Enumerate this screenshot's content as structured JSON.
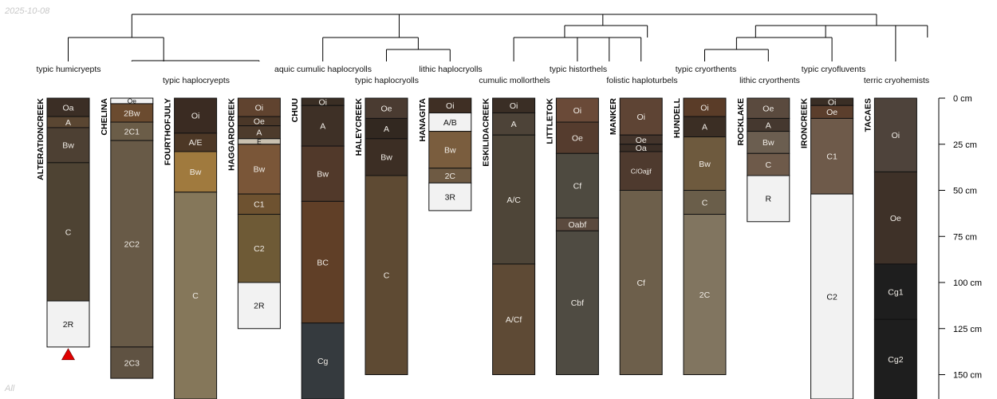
{
  "header": {
    "date": "2025-10-08"
  },
  "footer": {
    "label": "All"
  },
  "axis": {
    "unit": "cm",
    "ticks": [
      0,
      25,
      50,
      75,
      100,
      125,
      150
    ],
    "max_depth_shown": 165
  },
  "dendrogram": {
    "subgroups": [
      {
        "label": "typic humicryepts",
        "profiles": [
          "ALTERATIONCREEK"
        ]
      },
      {
        "label": "typic haplocryepts",
        "profiles": [
          "CHELINA",
          "FOURTHOFJULY",
          "HAGGARDCREEK"
        ]
      },
      {
        "label": "aquic cumulic haplocryolls",
        "profiles": [
          "CHUU"
        ]
      },
      {
        "label": "typic haplocryolls",
        "profiles": [
          "HALEYCREEK"
        ]
      },
      {
        "label": "lithic haplocryolls",
        "profiles": [
          "HANAGITA"
        ]
      },
      {
        "label": "cumulic mollorthels",
        "profiles": [
          "ESKILIDACREEK"
        ]
      },
      {
        "label": "typic historthels",
        "profiles": [
          "LITTLETOK"
        ]
      },
      {
        "label": "folistic haploturbels",
        "profiles": [
          "MANKER"
        ]
      },
      {
        "label": "typic cryorthents",
        "profiles": [
          "HUNDELL"
        ]
      },
      {
        "label": "lithic cryorthents",
        "profiles": [
          "ROCKLAKE"
        ]
      },
      {
        "label": "typic cryofluvents",
        "profiles": [
          "IRONCREEK"
        ]
      },
      {
        "label": "terric cryohemists",
        "profiles": [
          "TACAES"
        ]
      }
    ]
  },
  "profiles": [
    {
      "name": "ALTERATIONCREEK",
      "truncated": true,
      "horizons": [
        {
          "name": "Oa",
          "top": 0,
          "bottom": 10,
          "color": "#3b2e25"
        },
        {
          "name": "A",
          "top": 10,
          "bottom": 16,
          "color": "#5a4632"
        },
        {
          "name": "Bw",
          "top": 16,
          "bottom": 35,
          "color": "#4d4033"
        },
        {
          "name": "C",
          "top": 35,
          "bottom": 110,
          "color": "#4e4333"
        },
        {
          "name": "2R",
          "top": 110,
          "bottom": 135,
          "color": "#f2f2f2"
        }
      ]
    },
    {
      "name": "CHELINA",
      "horizons": [
        {
          "name": "Oe",
          "top": 0,
          "bottom": 3,
          "color": "#f2f2f2"
        },
        {
          "name": "2Bw",
          "top": 3,
          "bottom": 13,
          "color": "#6b4b2f"
        },
        {
          "name": "2C1",
          "top": 13,
          "bottom": 23,
          "color": "#6b5d48"
        },
        {
          "name": "2C2",
          "top": 23,
          "bottom": 135,
          "color": "#685a47"
        },
        {
          "name": "2C3",
          "top": 135,
          "bottom": 152,
          "color": "#5f5242"
        }
      ]
    },
    {
      "name": "FOURTHOFJULY",
      "horizons": [
        {
          "name": "Oi",
          "top": 0,
          "bottom": 19,
          "color": "#3a2b22"
        },
        {
          "name": "A/E",
          "top": 19,
          "bottom": 29,
          "color": "#4d3826"
        },
        {
          "name": "Bw",
          "top": 29,
          "bottom": 51,
          "color": "#a07a3e"
        },
        {
          "name": "C",
          "top": 51,
          "bottom": 165,
          "color": "#85775a"
        }
      ]
    },
    {
      "name": "HAGGARDCREEK",
      "horizons": [
        {
          "name": "Oi",
          "top": 0,
          "bottom": 10,
          "color": "#60432f"
        },
        {
          "name": "Oe",
          "top": 10,
          "bottom": 15,
          "color": "#4a3728"
        },
        {
          "name": "A",
          "top": 15,
          "bottom": 22,
          "color": "#4d3b2c"
        },
        {
          "name": "E",
          "top": 22,
          "bottom": 25,
          "color": "#c9c0b0"
        },
        {
          "name": "Bw",
          "top": 25,
          "bottom": 52,
          "color": "#7a5638"
        },
        {
          "name": "C1",
          "top": 52,
          "bottom": 63,
          "color": "#6e5230"
        },
        {
          "name": "C2",
          "top": 63,
          "bottom": 100,
          "color": "#6e5a36"
        },
        {
          "name": "2R",
          "top": 100,
          "bottom": 125,
          "color": "#f2f2f2"
        }
      ]
    },
    {
      "name": "CHUU",
      "horizons": [
        {
          "name": "Oi",
          "top": 0,
          "bottom": 4,
          "color": "#3a2e24"
        },
        {
          "name": "A",
          "top": 4,
          "bottom": 26,
          "color": "#3e3026"
        },
        {
          "name": "Bw",
          "top": 26,
          "bottom": 56,
          "color": "#51392a"
        },
        {
          "name": "BC",
          "top": 56,
          "bottom": 122,
          "color": "#603f27"
        },
        {
          "name": "Cg",
          "top": 122,
          "bottom": 170,
          "color": "#353a3e"
        }
      ]
    },
    {
      "name": "HALEYCREEK",
      "horizons": [
        {
          "name": "Oe",
          "top": 0,
          "bottom": 11,
          "color": "#4a3b31"
        },
        {
          "name": "A",
          "top": 11,
          "bottom": 22,
          "color": "#322820"
        },
        {
          "name": "Bw",
          "top": 22,
          "bottom": 42,
          "color": "#3c2e24"
        },
        {
          "name": "C",
          "top": 42,
          "bottom": 150,
          "color": "#5e4a33"
        }
      ]
    },
    {
      "name": "HANAGITA",
      "horizons": [
        {
          "name": "Oi",
          "top": 0,
          "bottom": 8,
          "color": "#3f2f24"
        },
        {
          "name": "A/B",
          "top": 8,
          "bottom": 18,
          "color": "#f2f2f2"
        },
        {
          "name": "Bw",
          "top": 18,
          "bottom": 38,
          "color": "#7a5d3e"
        },
        {
          "name": "2C",
          "top": 38,
          "bottom": 46,
          "color": "#6e5a43"
        },
        {
          "name": "3R",
          "top": 46,
          "bottom": 61,
          "color": "#f2f2f2"
        }
      ]
    },
    {
      "name": "ESKILIDACREEK",
      "horizons": [
        {
          "name": "Oi",
          "top": 0,
          "bottom": 8,
          "color": "#3a2e25"
        },
        {
          "name": "A",
          "top": 8,
          "bottom": 20,
          "color": "#4d4338"
        },
        {
          "name": "A/C",
          "top": 20,
          "bottom": 90,
          "color": "#4e4538"
        },
        {
          "name": "A/Cf",
          "top": 90,
          "bottom": 150,
          "color": "#5e4a35"
        }
      ]
    },
    {
      "name": "LITTLETOK",
      "horizons": [
        {
          "name": "Oi",
          "top": 0,
          "bottom": 13,
          "color": "#6a4a38"
        },
        {
          "name": "Oe",
          "top": 13,
          "bottom": 30,
          "color": "#553c2e"
        },
        {
          "name": "Cf",
          "top": 30,
          "bottom": 65,
          "color": "#4e4a40"
        },
        {
          "name": "Oabf",
          "top": 65,
          "bottom": 72,
          "color": "#5b4a3e"
        },
        {
          "name": "Cbf",
          "top": 72,
          "bottom": 150,
          "color": "#4f4b42"
        }
      ]
    },
    {
      "name": "MANKER",
      "horizons": [
        {
          "name": "Oi",
          "top": 0,
          "bottom": 20,
          "color": "#5e4434"
        },
        {
          "name": "Oe",
          "top": 20,
          "bottom": 25,
          "color": "#43342b"
        },
        {
          "name": "Oa",
          "top": 25,
          "bottom": 29,
          "color": "#3b2e26"
        },
        {
          "name": "C/Oajjf",
          "top": 29,
          "bottom": 50,
          "color": "#4e3a2e"
        },
        {
          "name": "Cf",
          "top": 50,
          "bottom": 150,
          "color": "#6d5f4b"
        }
      ]
    },
    {
      "name": "HUNDELL",
      "horizons": [
        {
          "name": "Oi",
          "top": 0,
          "bottom": 10,
          "color": "#5a3c28"
        },
        {
          "name": "A",
          "top": 10,
          "bottom": 21,
          "color": "#3b2e24"
        },
        {
          "name": "Bw",
          "top": 21,
          "bottom": 50,
          "color": "#6e5a3e"
        },
        {
          "name": "C",
          "top": 50,
          "bottom": 63,
          "color": "#6a5e4a"
        },
        {
          "name": "2C",
          "top": 63,
          "bottom": 150,
          "color": "#817560"
        }
      ]
    },
    {
      "name": "ROCKLAKE",
      "horizons": [
        {
          "name": "Oe",
          "top": 0,
          "bottom": 11,
          "color": "#5a4a3e"
        },
        {
          "name": "A",
          "top": 11,
          "bottom": 18,
          "color": "#45382f"
        },
        {
          "name": "Bw",
          "top": 18,
          "bottom": 30,
          "color": "#6b5e50"
        },
        {
          "name": "C",
          "top": 30,
          "bottom": 42,
          "color": "#6e5a4a"
        },
        {
          "name": "R",
          "top": 42,
          "bottom": 67,
          "color": "#f2f2f2"
        }
      ]
    },
    {
      "name": "IRONCREEK",
      "horizons": [
        {
          "name": "Oi",
          "top": 0,
          "bottom": 4,
          "color": "#3a2e25"
        },
        {
          "name": "Oe",
          "top": 4,
          "bottom": 11,
          "color": "#5b3e2c"
        },
        {
          "name": "C1",
          "top": 11,
          "bottom": 52,
          "color": "#6e5a4a"
        },
        {
          "name": "C2",
          "top": 52,
          "bottom": 170,
          "color": "#f2f2f2"
        }
      ]
    },
    {
      "name": "TACAES",
      "horizons": [
        {
          "name": "Oi",
          "top": 0,
          "bottom": 40,
          "color": "#4e433b"
        },
        {
          "name": "Oe",
          "top": 40,
          "bottom": 90,
          "color": "#3e3128"
        },
        {
          "name": "Cg1",
          "top": 90,
          "bottom": 120,
          "color": "#1e1e1e"
        },
        {
          "name": "Cg2",
          "top": 120,
          "bottom": 170,
          "color": "#1e1e1e"
        }
      ]
    }
  ]
}
